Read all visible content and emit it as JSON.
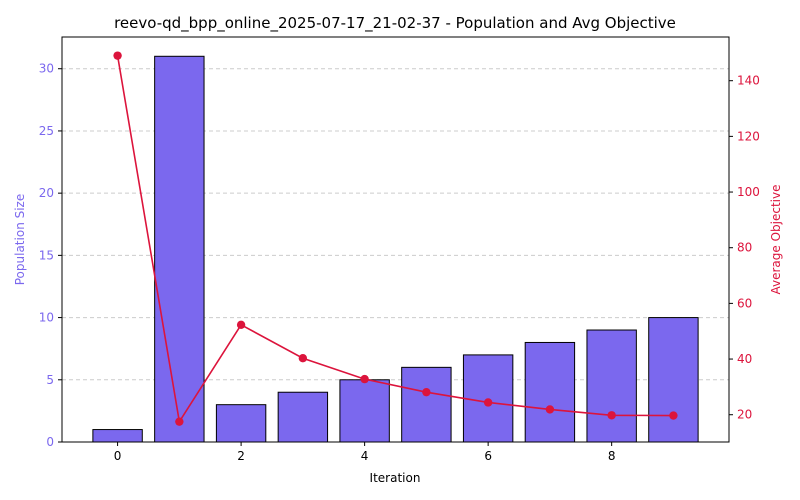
{
  "chart_data": {
    "type": "bar",
    "title": "reevo-qd_bpp_online_2025-07-17_21-02-37 - Population and Avg Objective",
    "xlabel": "Iteration",
    "ylabel": "Population Size",
    "y2label": "Average Objective",
    "x": [
      0,
      1,
      2,
      3,
      4,
      5,
      6,
      7,
      8,
      9
    ],
    "xlim": [
      -0.9,
      9.9
    ],
    "xticks": [
      "0",
      "2",
      "4",
      "6",
      "8"
    ],
    "ylim": [
      0,
      32.55
    ],
    "yticks": [
      "0",
      "5",
      "10",
      "15",
      "20",
      "25",
      "30"
    ],
    "y2lim": [
      10.2,
      155.7
    ],
    "y2ticks": [
      "20",
      "40",
      "60",
      "80",
      "100",
      "120",
      "140"
    ],
    "grid": "horizontal dashed",
    "series": [
      {
        "kind": "bar",
        "axis": "left",
        "color": "#7b68ee",
        "values": [
          1,
          31,
          3,
          4,
          5,
          6,
          7,
          8,
          9,
          10
        ]
      },
      {
        "kind": "line",
        "axis": "right",
        "color": "#dc143c",
        "values": [
          149.0,
          17.5,
          52.3,
          40.3,
          32.8,
          28.1,
          24.4,
          21.9,
          19.8,
          19.7
        ]
      }
    ],
    "colors": {
      "left_axis": "#7b68ee",
      "right_axis": "#dc143c",
      "bar_edge": "#000000",
      "grid": "#cccccc"
    }
  }
}
